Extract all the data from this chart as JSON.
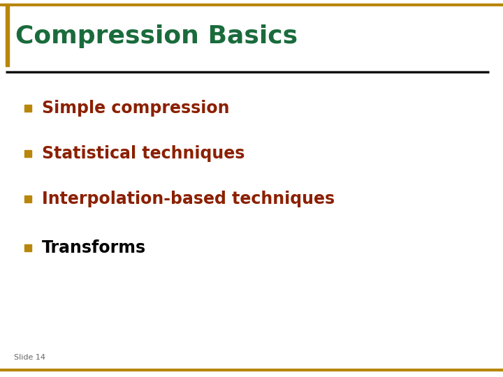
{
  "title": "Compression Basics",
  "title_color": "#1a6b3c",
  "title_fontsize": 26,
  "bullet_items": [
    "Simple compression",
    "Statistical techniques",
    "Interpolation-based techniques",
    "Transforms"
  ],
  "bullet_colors": [
    "#8b2000",
    "#8b2000",
    "#8b2000",
    "#000000"
  ],
  "bullet_fontsize": 17,
  "bullet_marker_color": "#b8860b",
  "slide_label": "Slide 14",
  "slide_label_color": "#666666",
  "slide_label_fontsize": 8,
  "background_color": "#ffffff",
  "border_color": "#b8860b",
  "divider_color": "#111111",
  "left_bar_color": "#b8860b"
}
